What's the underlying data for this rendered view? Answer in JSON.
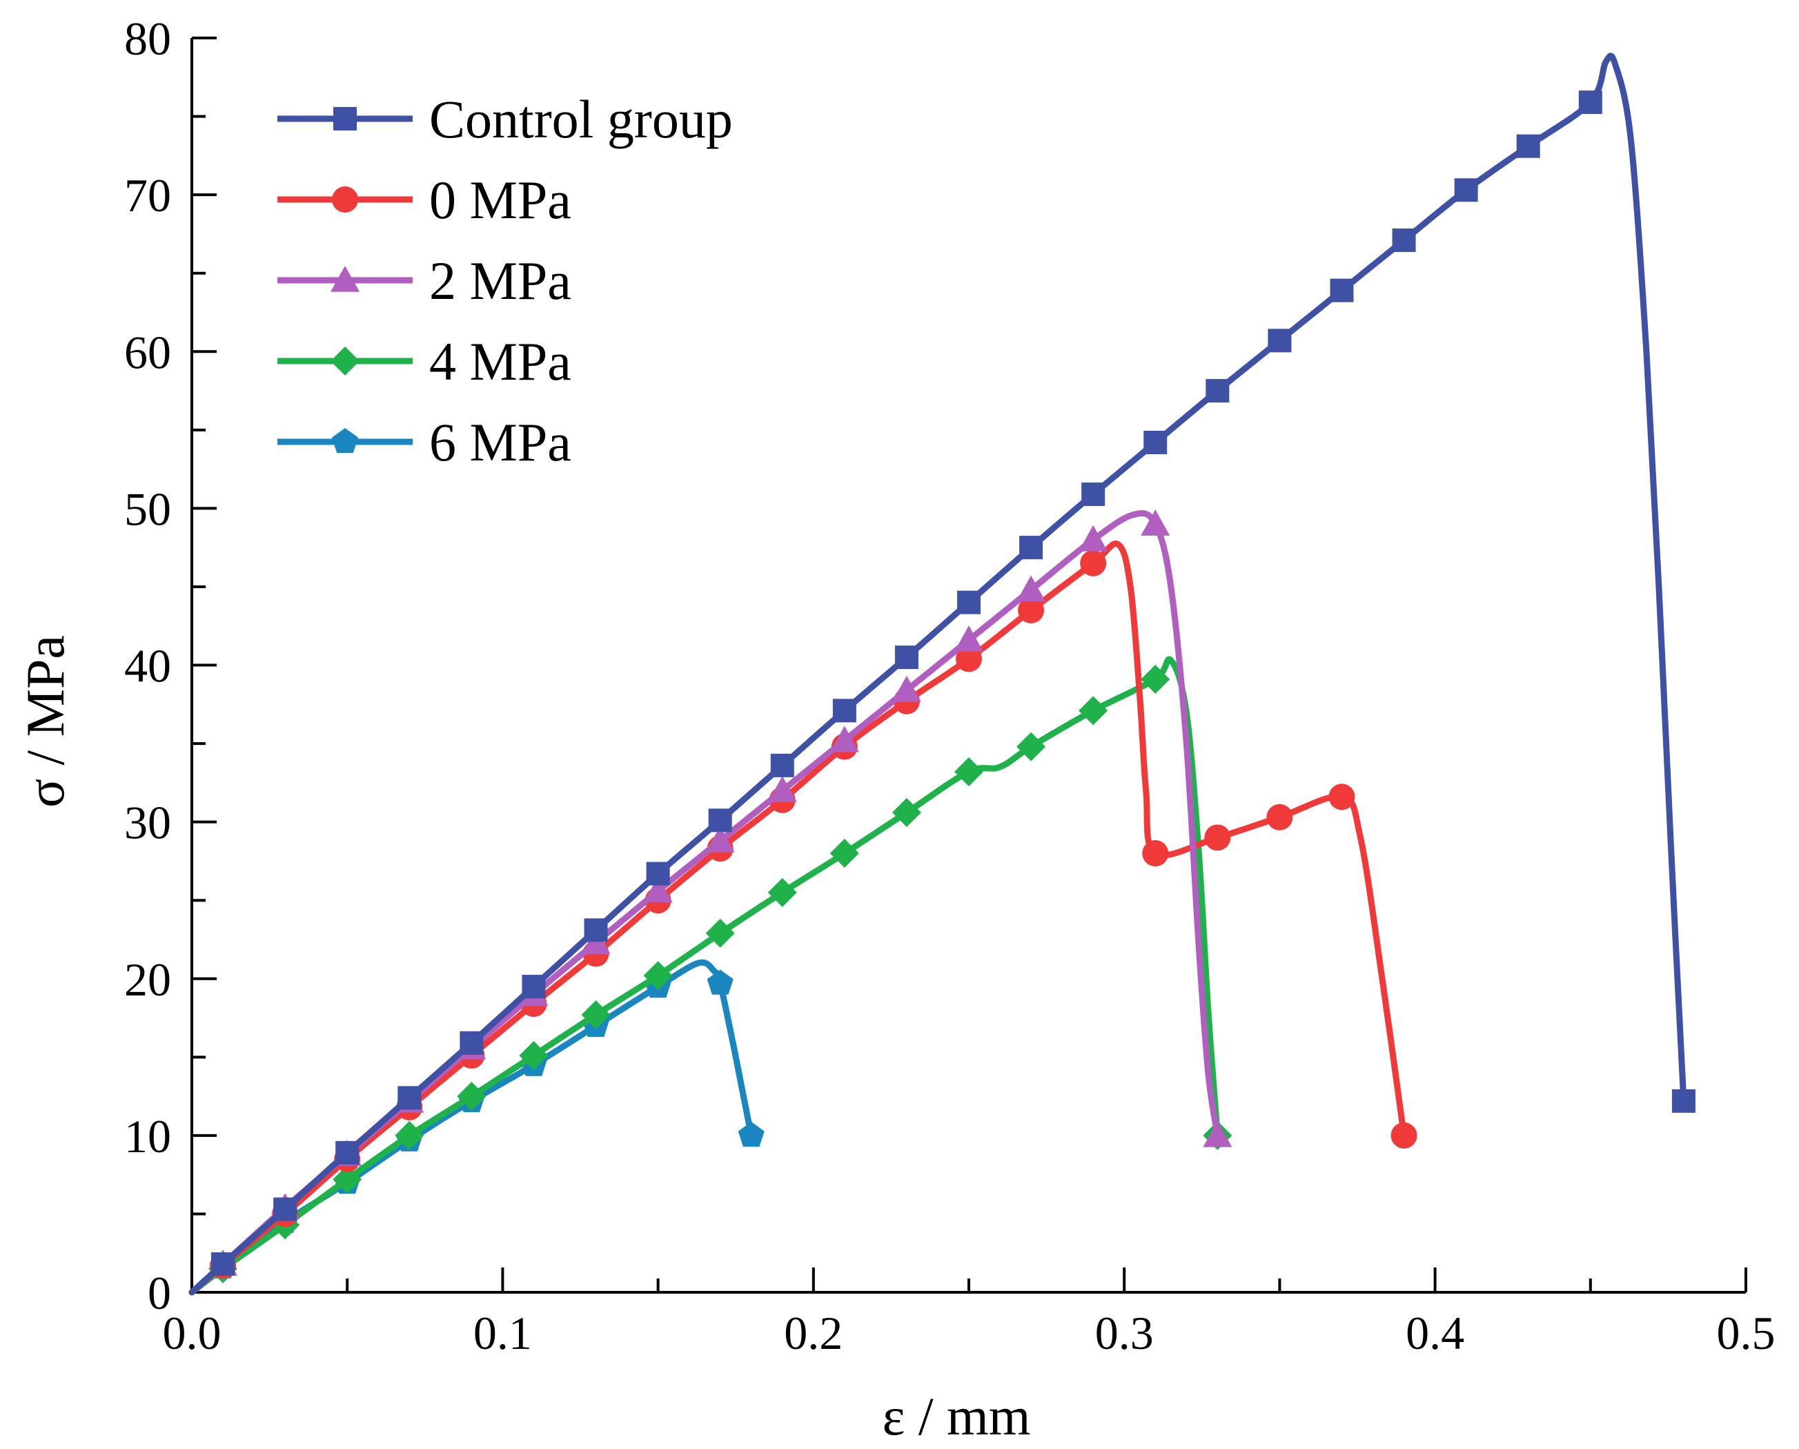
{
  "chart_data": {
    "type": "line",
    "title": "",
    "xlabel": "ε / mm",
    "ylabel": "σ / MPa",
    "xlim": [
      0,
      0.5
    ],
    "ylim": [
      0,
      80
    ],
    "xticks": [
      "0.0",
      "0.1",
      "0.2",
      "0.3",
      "0.4",
      "0.5"
    ],
    "yticks": [
      "0",
      "10",
      "20",
      "30",
      "40",
      "50",
      "60",
      "70",
      "80"
    ],
    "legend_position": "top-left",
    "series": [
      {
        "name": "Control group",
        "color": "#3F51A5",
        "marker": "square",
        "curve": [
          [
            0,
            0
          ],
          [
            0.01,
            1.8
          ],
          [
            0.03,
            5.3
          ],
          [
            0.05,
            8.9
          ],
          [
            0.07,
            12.4
          ],
          [
            0.09,
            15.9
          ],
          [
            0.11,
            19.5
          ],
          [
            0.13,
            23.1
          ],
          [
            0.15,
            26.7
          ],
          [
            0.17,
            30.1
          ],
          [
            0.19,
            33.6
          ],
          [
            0.21,
            37.1
          ],
          [
            0.23,
            40.5
          ],
          [
            0.25,
            44.0
          ],
          [
            0.27,
            47.5
          ],
          [
            0.29,
            50.9
          ],
          [
            0.31,
            54.2
          ],
          [
            0.33,
            57.5
          ],
          [
            0.35,
            60.7
          ],
          [
            0.37,
            63.9
          ],
          [
            0.39,
            67.1
          ],
          [
            0.41,
            70.3
          ],
          [
            0.43,
            73.1
          ],
          [
            0.45,
            75.9
          ],
          [
            0.455,
            78.5
          ],
          [
            0.458,
            78.3
          ],
          [
            0.463,
            73.5
          ],
          [
            0.468,
            60.0
          ],
          [
            0.472,
            45.0
          ],
          [
            0.476,
            28.0
          ],
          [
            0.48,
            12.2
          ]
        ],
        "markers": [
          [
            0.01,
            1.8
          ],
          [
            0.03,
            5.3
          ],
          [
            0.05,
            8.9
          ],
          [
            0.07,
            12.4
          ],
          [
            0.09,
            15.9
          ],
          [
            0.11,
            19.5
          ],
          [
            0.13,
            23.1
          ],
          [
            0.15,
            26.7
          ],
          [
            0.17,
            30.1
          ],
          [
            0.19,
            33.6
          ],
          [
            0.21,
            37.1
          ],
          [
            0.23,
            40.5
          ],
          [
            0.25,
            44.0
          ],
          [
            0.27,
            47.5
          ],
          [
            0.29,
            50.9
          ],
          [
            0.31,
            54.2
          ],
          [
            0.33,
            57.5
          ],
          [
            0.35,
            60.7
          ],
          [
            0.37,
            63.9
          ],
          [
            0.39,
            67.1
          ],
          [
            0.41,
            70.3
          ],
          [
            0.43,
            73.1
          ],
          [
            0.45,
            75.9
          ],
          [
            0.48,
            12.2
          ]
        ]
      },
      {
        "name": "0 MPa",
        "color": "#F03A3A",
        "marker": "circle",
        "curve": [
          [
            0,
            0
          ],
          [
            0.01,
            1.7
          ],
          [
            0.03,
            5.0
          ],
          [
            0.05,
            8.5
          ],
          [
            0.07,
            11.8
          ],
          [
            0.09,
            15.1
          ],
          [
            0.11,
            18.4
          ],
          [
            0.13,
            21.6
          ],
          [
            0.15,
            25.0
          ],
          [
            0.17,
            28.3
          ],
          [
            0.19,
            31.4
          ],
          [
            0.21,
            34.8
          ],
          [
            0.23,
            37.7
          ],
          [
            0.25,
            40.4
          ],
          [
            0.27,
            43.5
          ],
          [
            0.29,
            46.5
          ],
          [
            0.298,
            47.7
          ],
          [
            0.302,
            45.0
          ],
          [
            0.305,
            38.0
          ],
          [
            0.307,
            32.0
          ],
          [
            0.31,
            28.0
          ],
          [
            0.33,
            29.0
          ],
          [
            0.35,
            30.3
          ],
          [
            0.37,
            31.6
          ],
          [
            0.376,
            29.0
          ],
          [
            0.383,
            20.0
          ],
          [
            0.39,
            10.0
          ]
        ],
        "markers": [
          [
            0.01,
            1.7
          ],
          [
            0.03,
            5.0
          ],
          [
            0.05,
            8.5
          ],
          [
            0.07,
            11.8
          ],
          [
            0.09,
            15.1
          ],
          [
            0.11,
            18.4
          ],
          [
            0.13,
            21.6
          ],
          [
            0.15,
            25.0
          ],
          [
            0.17,
            28.3
          ],
          [
            0.19,
            31.4
          ],
          [
            0.21,
            34.8
          ],
          [
            0.23,
            37.7
          ],
          [
            0.25,
            40.4
          ],
          [
            0.27,
            43.5
          ],
          [
            0.29,
            46.5
          ],
          [
            0.31,
            28.0
          ],
          [
            0.33,
            29.0
          ],
          [
            0.35,
            30.3
          ],
          [
            0.37,
            31.6
          ],
          [
            0.39,
            10.0
          ]
        ]
      },
      {
        "name": "2 MPa",
        "color": "#B05FC0",
        "marker": "triangle",
        "curve": [
          [
            0,
            0
          ],
          [
            0.01,
            1.8
          ],
          [
            0.03,
            5.4
          ],
          [
            0.05,
            8.8
          ],
          [
            0.07,
            12.2
          ],
          [
            0.09,
            15.6
          ],
          [
            0.11,
            19.0
          ],
          [
            0.13,
            22.3
          ],
          [
            0.15,
            25.6
          ],
          [
            0.17,
            28.8
          ],
          [
            0.19,
            32.0
          ],
          [
            0.21,
            35.2
          ],
          [
            0.23,
            38.4
          ],
          [
            0.25,
            41.6
          ],
          [
            0.27,
            44.8
          ],
          [
            0.29,
            48.0
          ],
          [
            0.303,
            49.6
          ],
          [
            0.31,
            49.0
          ],
          [
            0.315,
            45.0
          ],
          [
            0.32,
            35.0
          ],
          [
            0.324,
            22.0
          ],
          [
            0.327,
            14.0
          ],
          [
            0.33,
            10.0
          ]
        ],
        "markers": [
          [
            0.01,
            1.8
          ],
          [
            0.03,
            5.4
          ],
          [
            0.05,
            8.8
          ],
          [
            0.07,
            12.2
          ],
          [
            0.09,
            15.6
          ],
          [
            0.11,
            19.0
          ],
          [
            0.13,
            22.3
          ],
          [
            0.15,
            25.6
          ],
          [
            0.17,
            28.8
          ],
          [
            0.19,
            32.0
          ],
          [
            0.21,
            35.2
          ],
          [
            0.23,
            38.4
          ],
          [
            0.25,
            41.6
          ],
          [
            0.27,
            44.8
          ],
          [
            0.29,
            48.0
          ],
          [
            0.31,
            49.0
          ],
          [
            0.33,
            10.0
          ]
        ]
      },
      {
        "name": "4 MPa",
        "color": "#1FB24A",
        "marker": "diamond",
        "curve": [
          [
            0,
            0
          ],
          [
            0.01,
            1.5
          ],
          [
            0.03,
            4.3
          ],
          [
            0.05,
            7.2
          ],
          [
            0.07,
            10.0
          ],
          [
            0.09,
            12.5
          ],
          [
            0.11,
            15.1
          ],
          [
            0.13,
            17.7
          ],
          [
            0.15,
            20.2
          ],
          [
            0.17,
            22.9
          ],
          [
            0.19,
            25.5
          ],
          [
            0.21,
            28.0
          ],
          [
            0.23,
            30.6
          ],
          [
            0.25,
            33.2
          ],
          [
            0.26,
            33.5
          ],
          [
            0.27,
            34.8
          ],
          [
            0.29,
            37.1
          ],
          [
            0.31,
            39.1
          ],
          [
            0.315,
            40.3
          ],
          [
            0.32,
            37.0
          ],
          [
            0.324,
            28.0
          ],
          [
            0.327,
            18.0
          ],
          [
            0.33,
            10.0
          ]
        ],
        "markers": [
          [
            0.01,
            1.5
          ],
          [
            0.03,
            4.3
          ],
          [
            0.05,
            7.2
          ],
          [
            0.07,
            10.0
          ],
          [
            0.09,
            12.5
          ],
          [
            0.11,
            15.1
          ],
          [
            0.13,
            17.7
          ],
          [
            0.15,
            20.2
          ],
          [
            0.17,
            22.9
          ],
          [
            0.19,
            25.5
          ],
          [
            0.21,
            28.0
          ],
          [
            0.23,
            30.6
          ],
          [
            0.25,
            33.2
          ],
          [
            0.27,
            34.8
          ],
          [
            0.29,
            37.1
          ],
          [
            0.31,
            39.1
          ],
          [
            0.33,
            10.0
          ]
        ]
      },
      {
        "name": "6 MPa",
        "color": "#1A86C0",
        "marker": "pentagon",
        "curve": [
          [
            0,
            0
          ],
          [
            0.01,
            1.6
          ],
          [
            0.03,
            4.5
          ],
          [
            0.05,
            7.0
          ],
          [
            0.07,
            9.7
          ],
          [
            0.09,
            12.2
          ],
          [
            0.11,
            14.5
          ],
          [
            0.13,
            17.0
          ],
          [
            0.15,
            19.5
          ],
          [
            0.163,
            21.0
          ],
          [
            0.168,
            20.5
          ],
          [
            0.17,
            19.7
          ],
          [
            0.174,
            16.0
          ],
          [
            0.177,
            13.0
          ],
          [
            0.18,
            10.0
          ]
        ],
        "markers": [
          [
            0.01,
            1.6
          ],
          [
            0.03,
            4.5
          ],
          [
            0.05,
            7.0
          ],
          [
            0.07,
            9.7
          ],
          [
            0.09,
            12.2
          ],
          [
            0.11,
            14.5
          ],
          [
            0.13,
            17.0
          ],
          [
            0.15,
            19.5
          ],
          [
            0.17,
            19.7
          ],
          [
            0.18,
            10.0
          ]
        ]
      }
    ]
  }
}
